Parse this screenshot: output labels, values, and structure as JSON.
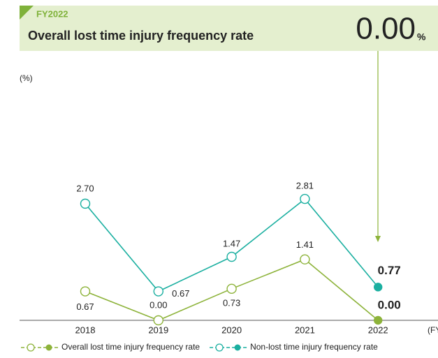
{
  "chart_data": {
    "type": "line",
    "header": {
      "period": "FY2022",
      "title": "Overall lost time injury frequency rate",
      "value": "0.00",
      "unit": "%"
    },
    "y_unit": "(%)",
    "x_unit": "(FY)",
    "categories": [
      "2018",
      "2019",
      "2020",
      "2021",
      "2022"
    ],
    "ylim": [
      0,
      5
    ],
    "series": [
      {
        "name": "Overall lost time injury frequency rate",
        "color": "#8db33a",
        "values": [
          0.67,
          0.0,
          0.73,
          1.41,
          0.0
        ],
        "value_labels": [
          "0.67",
          "0.00",
          "0.73",
          "1.41",
          "0.00"
        ]
      },
      {
        "name": "Non-lost time injury frequency rate",
        "color": "#1aafa0",
        "values": [
          2.7,
          0.67,
          1.47,
          2.81,
          0.77
        ],
        "value_labels": [
          "2.70",
          "0.67",
          "1.47",
          "2.81",
          "0.77"
        ]
      }
    ]
  }
}
